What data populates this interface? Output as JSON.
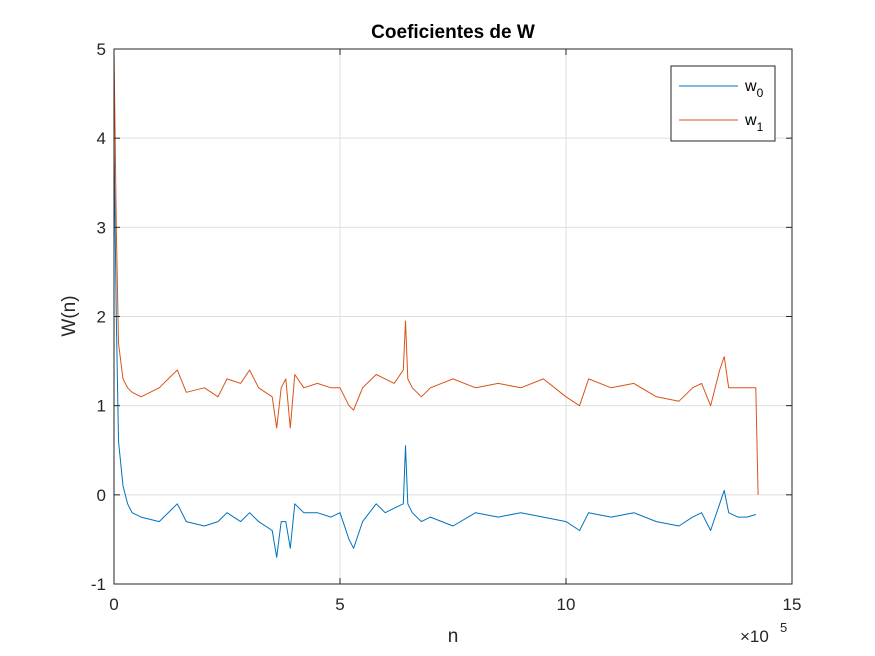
{
  "chart_data": {
    "type": "line",
    "title": "Coeficientes de W",
    "xlabel": "n",
    "ylabel": "W(n)",
    "xlim": [
      0,
      1500000
    ],
    "ylim": [
      -1,
      5
    ],
    "x_ticks": [
      0,
      5,
      10,
      15
    ],
    "x_tick_labels": [
      "0",
      "5",
      "10",
      "15"
    ],
    "x_multiplier": "×10",
    "x_multiplier_exp": "5",
    "y_ticks": [
      -1,
      0,
      1,
      2,
      3,
      4,
      5
    ],
    "y_tick_labels": [
      "-1",
      "0",
      "1",
      "2",
      "3",
      "4",
      "5"
    ],
    "grid": true,
    "legend_position": "top-right",
    "series": [
      {
        "name_base": "w",
        "name_sub": "0",
        "color": "#0072BD",
        "x": [
          0,
          5000,
          10000,
          20000,
          30000,
          40000,
          60000,
          100000,
          140000,
          160000,
          200000,
          230000,
          250000,
          280000,
          300000,
          320000,
          350000,
          360000,
          370000,
          380000,
          390000,
          400000,
          420000,
          450000,
          480000,
          500000,
          520000,
          530000,
          550000,
          580000,
          600000,
          620000,
          640000,
          645000,
          650000,
          660000,
          680000,
          700000,
          750000,
          800000,
          850000,
          900000,
          950000,
          1000000,
          1030000,
          1050000,
          1100000,
          1150000,
          1200000,
          1250000,
          1280000,
          1300000,
          1320000,
          1340000,
          1350000,
          1360000,
          1380000,
          1400000,
          1420000
        ],
        "y": [
          4.0,
          2.0,
          0.6,
          0.1,
          -0.1,
          -0.2,
          -0.25,
          -0.3,
          -0.1,
          -0.3,
          -0.35,
          -0.3,
          -0.2,
          -0.3,
          -0.2,
          -0.3,
          -0.4,
          -0.7,
          -0.3,
          -0.3,
          -0.6,
          -0.1,
          -0.2,
          -0.2,
          -0.25,
          -0.2,
          -0.5,
          -0.6,
          -0.3,
          -0.1,
          -0.2,
          -0.15,
          -0.1,
          0.55,
          -0.1,
          -0.2,
          -0.3,
          -0.25,
          -0.35,
          -0.2,
          -0.25,
          -0.2,
          -0.25,
          -0.3,
          -0.4,
          -0.2,
          -0.25,
          -0.2,
          -0.3,
          -0.35,
          -0.25,
          -0.2,
          -0.4,
          -0.1,
          0.05,
          -0.2,
          -0.25,
          -0.25,
          -0.22
        ]
      },
      {
        "name_base": "w",
        "name_sub": "1",
        "color": "#D95319",
        "x": [
          0,
          5000,
          10000,
          20000,
          30000,
          40000,
          60000,
          100000,
          140000,
          160000,
          200000,
          230000,
          250000,
          280000,
          300000,
          320000,
          350000,
          360000,
          370000,
          380000,
          390000,
          400000,
          420000,
          450000,
          480000,
          500000,
          520000,
          530000,
          550000,
          580000,
          600000,
          620000,
          640000,
          645000,
          650000,
          660000,
          680000,
          700000,
          750000,
          800000,
          850000,
          900000,
          950000,
          1000000,
          1030000,
          1050000,
          1100000,
          1150000,
          1200000,
          1250000,
          1280000,
          1300000,
          1320000,
          1340000,
          1350000,
          1360000,
          1380000,
          1400000,
          1420000,
          1425000
        ],
        "y": [
          5.0,
          3.0,
          1.7,
          1.3,
          1.2,
          1.15,
          1.1,
          1.2,
          1.4,
          1.15,
          1.2,
          1.1,
          1.3,
          1.25,
          1.4,
          1.2,
          1.1,
          0.75,
          1.2,
          1.3,
          0.75,
          1.35,
          1.2,
          1.25,
          1.2,
          1.2,
          1.0,
          0.95,
          1.2,
          1.35,
          1.3,
          1.25,
          1.4,
          1.95,
          1.3,
          1.2,
          1.1,
          1.2,
          1.3,
          1.2,
          1.25,
          1.2,
          1.3,
          1.1,
          1.0,
          1.3,
          1.2,
          1.25,
          1.1,
          1.05,
          1.2,
          1.25,
          1.0,
          1.4,
          1.55,
          1.2,
          1.2,
          1.2,
          1.2,
          0.0
        ]
      }
    ]
  }
}
